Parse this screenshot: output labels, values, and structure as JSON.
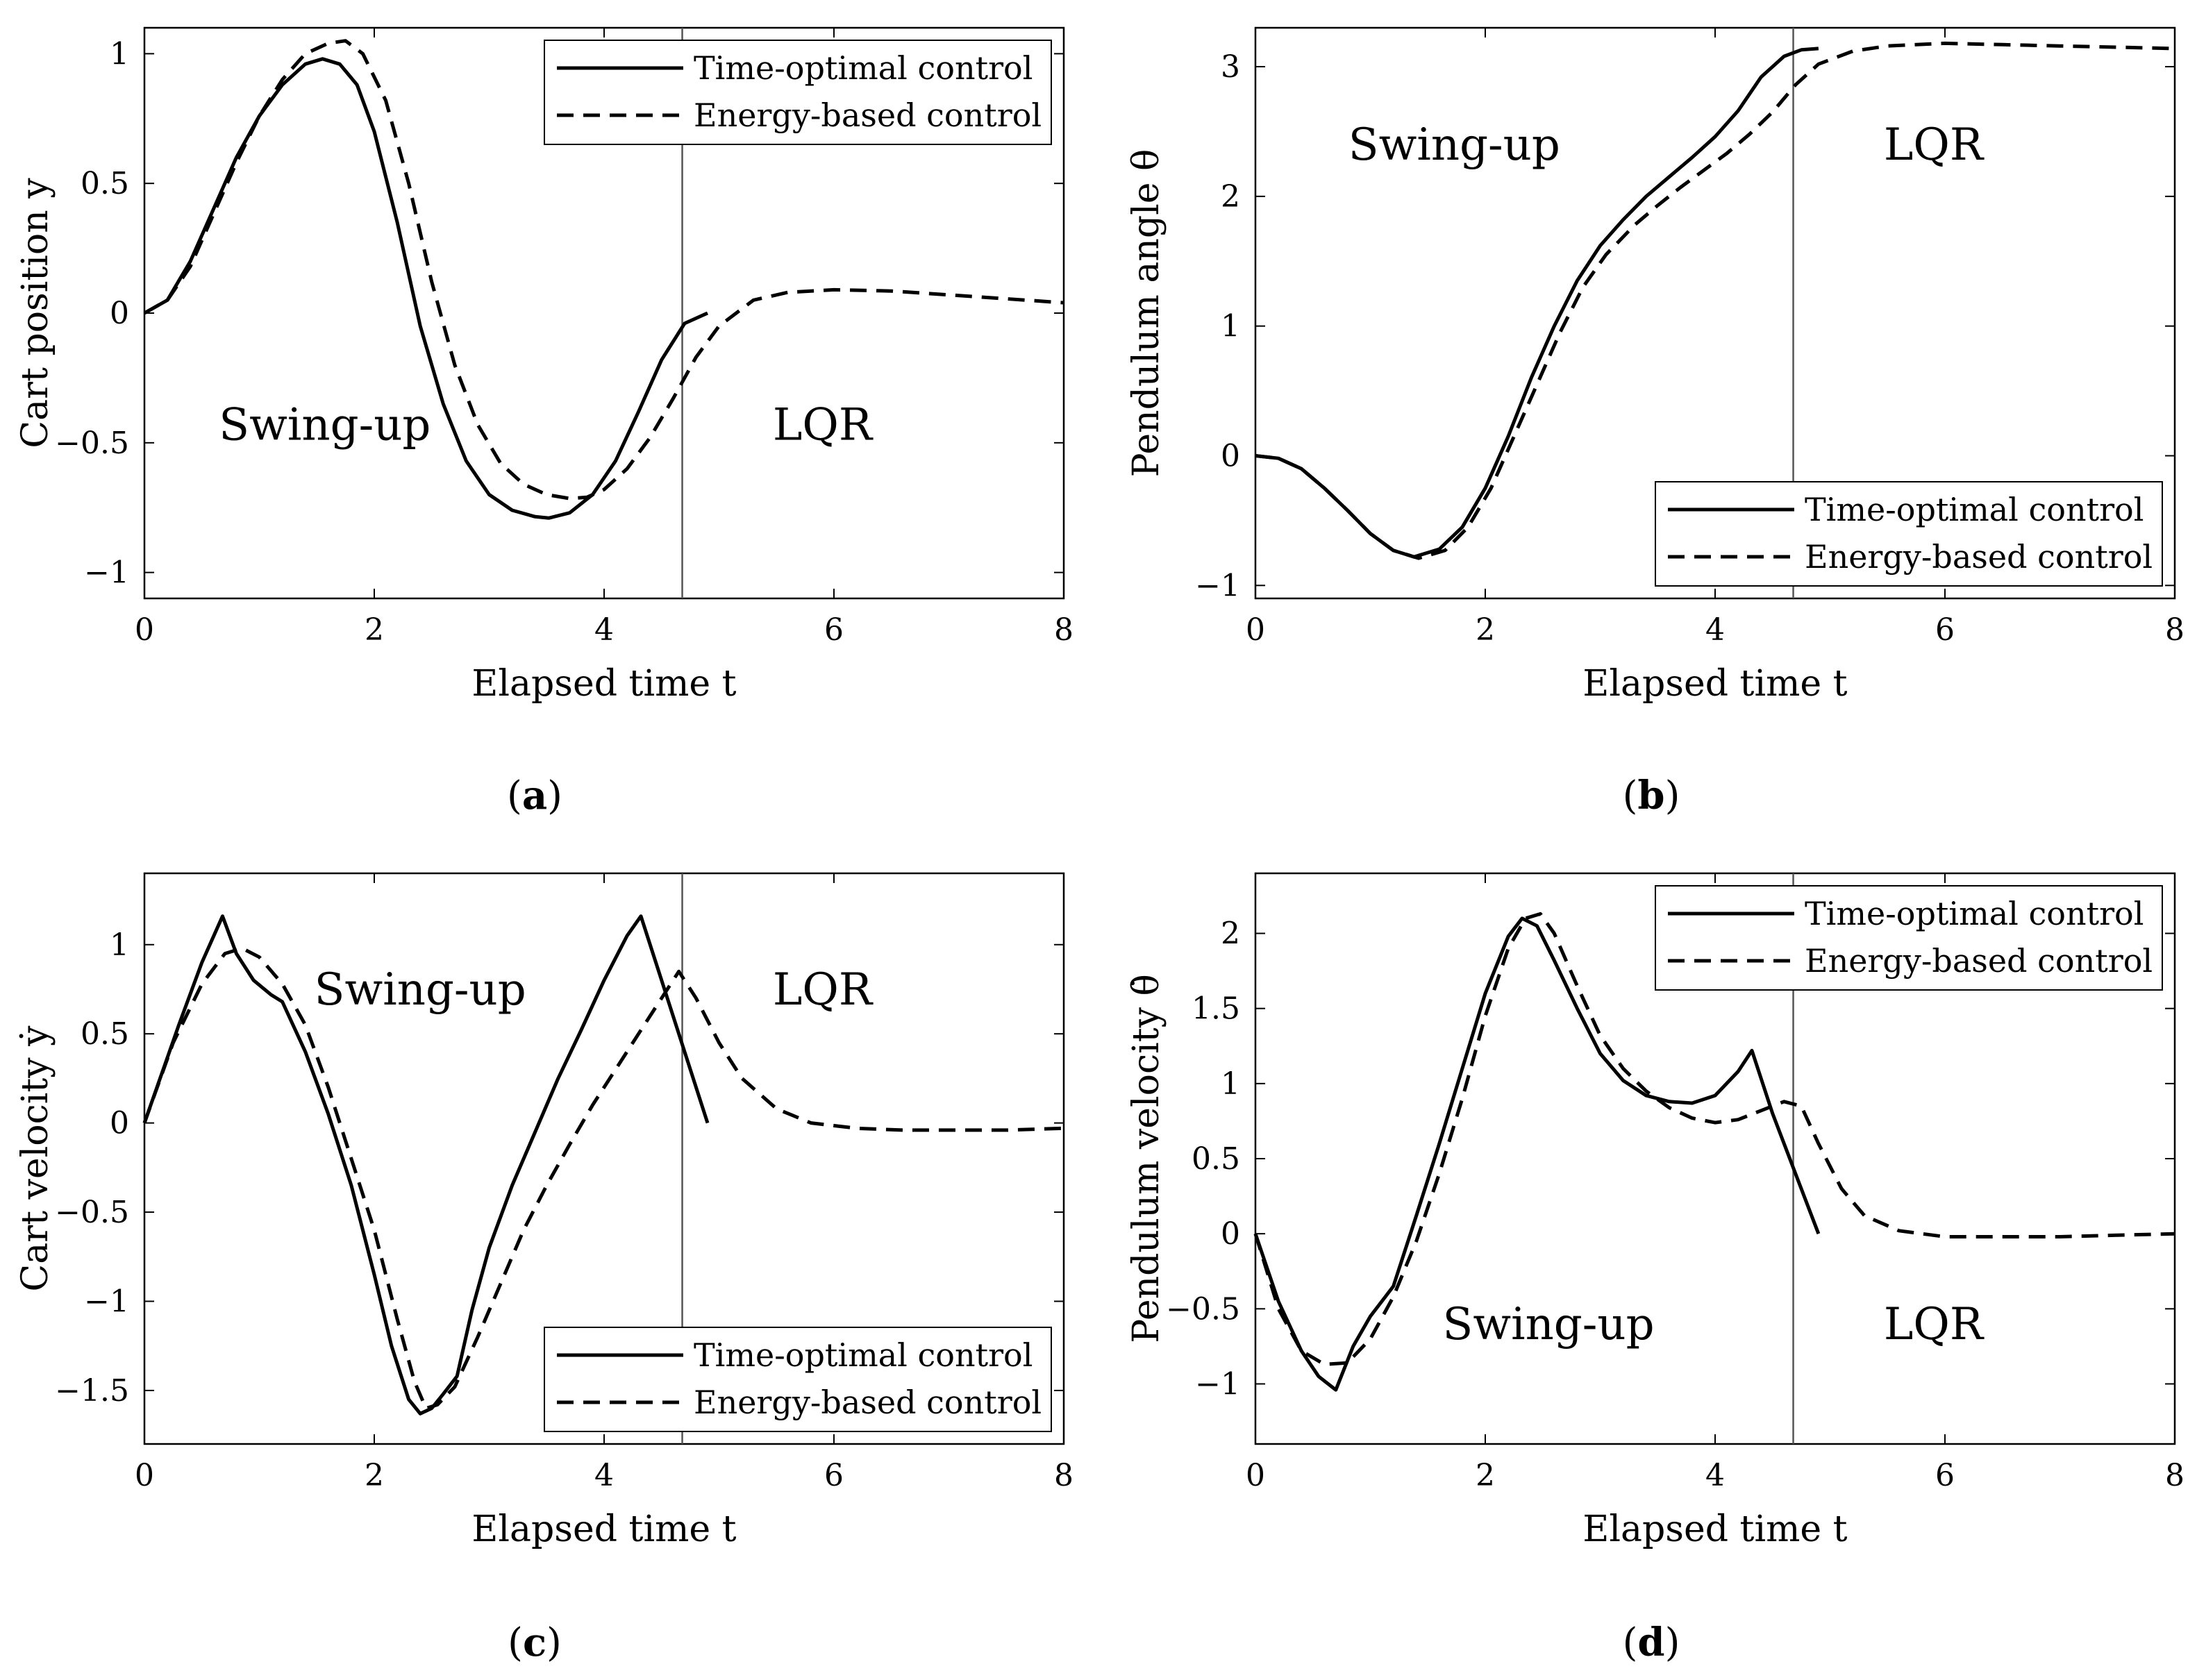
{
  "figure": {
    "legend_labels": {
      "time_optimal": "Time-optimal control",
      "energy_based": "Energy-based control"
    },
    "colors": {
      "line": "#000000",
      "switch_line": "#555555",
      "axes": "#000000"
    }
  },
  "chart_data": [
    {
      "id": "a",
      "type": "line",
      "caption_letter": "a",
      "xlabel": "Elapsed time t",
      "ylabel": "Cart position y",
      "xlim": [
        0,
        8
      ],
      "ylim": [
        -1.1,
        1.1
      ],
      "xticks": [
        0,
        2,
        4,
        6,
        8
      ],
      "yticks": [
        -1,
        -0.5,
        0,
        0.5,
        1
      ],
      "switch_time": 4.68,
      "legend_position": "top-right",
      "regions": [
        {
          "label": "Swing-up",
          "x": 1.57,
          "y": -0.43
        },
        {
          "label": "LQR",
          "x": 5.9,
          "y": -0.43
        }
      ],
      "series": [
        {
          "name": "Time-optimal control",
          "style": "solid",
          "x": [
            0,
            0.2,
            0.4,
            0.6,
            0.8,
            1.0,
            1.2,
            1.4,
            1.55,
            1.7,
            1.85,
            2.0,
            2.2,
            2.4,
            2.6,
            2.8,
            3.0,
            3.2,
            3.4,
            3.52,
            3.7,
            3.9,
            4.1,
            4.3,
            4.5,
            4.7,
            4.9
          ],
          "y": [
            0,
            0.05,
            0.2,
            0.4,
            0.6,
            0.76,
            0.88,
            0.96,
            0.98,
            0.96,
            0.88,
            0.7,
            0.35,
            -0.05,
            -0.35,
            -0.57,
            -0.7,
            -0.76,
            -0.785,
            -0.79,
            -0.77,
            -0.7,
            -0.57,
            -0.38,
            -0.18,
            -0.04,
            0
          ]
        },
        {
          "name": "Energy-based control",
          "style": "dashed",
          "x": [
            0,
            0.2,
            0.4,
            0.6,
            0.8,
            1.0,
            1.2,
            1.4,
            1.6,
            1.75,
            1.9,
            2.1,
            2.3,
            2.5,
            2.7,
            2.9,
            3.1,
            3.3,
            3.5,
            3.7,
            3.85,
            4.0,
            4.2,
            4.4,
            4.6,
            4.8,
            5.0,
            5.3,
            5.6,
            6.0,
            6.5,
            7.0,
            7.5,
            8.0
          ],
          "y": [
            0,
            0.05,
            0.18,
            0.38,
            0.58,
            0.76,
            0.9,
            1.0,
            1.04,
            1.05,
            1.0,
            0.82,
            0.5,
            0.12,
            -0.2,
            -0.43,
            -0.58,
            -0.66,
            -0.7,
            -0.715,
            -0.71,
            -0.68,
            -0.6,
            -0.48,
            -0.33,
            -0.17,
            -0.05,
            0.05,
            0.08,
            0.09,
            0.085,
            0.07,
            0.055,
            0.04
          ]
        }
      ]
    },
    {
      "id": "b",
      "type": "line",
      "caption_letter": "b",
      "xlabel": "Elapsed time t",
      "ylabel": "Pendulum angle θ",
      "xlim": [
        0,
        8
      ],
      "ylim": [
        -1.1,
        3.3
      ],
      "xticks": [
        0,
        2,
        4,
        6,
        8
      ],
      "yticks": [
        -1,
        0,
        1,
        2,
        3
      ],
      "switch_time": 4.68,
      "legend_position": "bottom-right",
      "regions": [
        {
          "label": "Swing-up",
          "x": 1.73,
          "y": 2.4
        },
        {
          "label": "LQR",
          "x": 5.9,
          "y": 2.4
        }
      ],
      "series": [
        {
          "name": "Time-optimal control",
          "style": "solid",
          "x": [
            0,
            0.2,
            0.4,
            0.6,
            0.8,
            1.0,
            1.2,
            1.38,
            1.6,
            1.8,
            2.0,
            2.2,
            2.4,
            2.6,
            2.8,
            3.0,
            3.2,
            3.4,
            3.6,
            3.8,
            4.0,
            4.2,
            4.4,
            4.6,
            4.75,
            4.9
          ],
          "y": [
            0,
            -0.02,
            -0.1,
            -0.25,
            -0.42,
            -0.6,
            -0.73,
            -0.78,
            -0.72,
            -0.55,
            -0.25,
            0.15,
            0.6,
            1.0,
            1.35,
            1.62,
            1.82,
            2.0,
            2.15,
            2.3,
            2.46,
            2.66,
            2.92,
            3.08,
            3.13,
            3.14
          ]
        },
        {
          "name": "Energy-based control",
          "style": "dashed",
          "x": [
            0,
            0.2,
            0.4,
            0.6,
            0.8,
            1.0,
            1.2,
            1.42,
            1.65,
            1.85,
            2.05,
            2.25,
            2.45,
            2.65,
            2.85,
            3.05,
            3.3,
            3.5,
            3.7,
            3.9,
            4.1,
            4.3,
            4.5,
            4.7,
            4.9,
            5.2,
            5.5,
            6.0,
            6.5,
            7.0,
            7.5,
            8.0
          ],
          "y": [
            0,
            -0.02,
            -0.1,
            -0.25,
            -0.42,
            -0.6,
            -0.73,
            -0.79,
            -0.73,
            -0.55,
            -0.25,
            0.15,
            0.55,
            0.95,
            1.3,
            1.55,
            1.78,
            1.93,
            2.07,
            2.2,
            2.33,
            2.48,
            2.65,
            2.86,
            3.02,
            3.12,
            3.16,
            3.18,
            3.17,
            3.16,
            3.15,
            3.14
          ]
        }
      ]
    },
    {
      "id": "c",
      "type": "line",
      "caption_letter": "c",
      "xlabel": "Elapsed time t",
      "ylabel": "Cart velocity ẏ",
      "xlim": [
        0,
        8
      ],
      "ylim": [
        -1.8,
        1.4
      ],
      "xticks": [
        0,
        2,
        4,
        6,
        8
      ],
      "yticks": [
        -1.5,
        -1,
        -0.5,
        0,
        0.5,
        1
      ],
      "switch_time": 4.68,
      "legend_position": "bottom-right",
      "regions": [
        {
          "label": "Swing-up",
          "x": 2.4,
          "y": 0.75
        },
        {
          "label": "LQR",
          "x": 5.9,
          "y": 0.75
        }
      ],
      "series": [
        {
          "name": "Time-optimal control",
          "style": "solid",
          "x": [
            0,
            0.3,
            0.5,
            0.68,
            0.8,
            0.95,
            1.1,
            1.2,
            1.4,
            1.6,
            1.8,
            2.0,
            2.15,
            2.3,
            2.4,
            2.5,
            2.6,
            2.72,
            2.85,
            3.0,
            3.2,
            3.4,
            3.6,
            3.8,
            4.0,
            4.2,
            4.32,
            4.5,
            4.7,
            4.9
          ],
          "y": [
            0,
            0.55,
            0.9,
            1.16,
            0.95,
            0.8,
            0.72,
            0.68,
            0.4,
            0.05,
            -0.35,
            -0.85,
            -1.25,
            -1.55,
            -1.63,
            -1.6,
            -1.52,
            -1.42,
            -1.05,
            -0.7,
            -0.35,
            -0.05,
            0.25,
            0.52,
            0.8,
            1.05,
            1.16,
            0.8,
            0.4,
            0
          ]
        },
        {
          "name": "Energy-based control",
          "style": "dashed",
          "x": [
            0,
            0.25,
            0.5,
            0.7,
            0.85,
            1.0,
            1.2,
            1.4,
            1.6,
            1.8,
            2.0,
            2.2,
            2.35,
            2.45,
            2.55,
            2.7,
            2.9,
            3.1,
            3.3,
            3.5,
            3.7,
            3.9,
            4.1,
            4.3,
            4.5,
            4.65,
            4.8,
            5.0,
            5.2,
            5.5,
            5.8,
            6.2,
            6.6,
            7.0,
            7.5,
            8.0
          ],
          "y": [
            0,
            0.45,
            0.78,
            0.95,
            0.98,
            0.93,
            0.78,
            0.55,
            0.2,
            -0.2,
            -0.6,
            -1.1,
            -1.45,
            -1.6,
            -1.58,
            -1.48,
            -1.2,
            -0.9,
            -0.6,
            -0.35,
            -0.12,
            0.1,
            0.3,
            0.5,
            0.7,
            0.85,
            0.7,
            0.45,
            0.25,
            0.08,
            0.0,
            -0.03,
            -0.04,
            -0.04,
            -0.04,
            -0.03
          ]
        }
      ]
    },
    {
      "id": "d",
      "type": "line",
      "caption_letter": "d",
      "xlabel": "Elapsed time t",
      "ylabel": "Pendulum velocity θ̇",
      "xlim": [
        0,
        8
      ],
      "ylim": [
        -1.4,
        2.4
      ],
      "xticks": [
        0,
        2,
        4,
        6,
        8
      ],
      "yticks": [
        -1,
        -0.5,
        0,
        0.5,
        1,
        1.5,
        2
      ],
      "switch_time": 4.68,
      "legend_position": "top-right",
      "regions": [
        {
          "label": "Swing-up",
          "x": 2.55,
          "y": -0.6
        },
        {
          "label": "LQR",
          "x": 5.9,
          "y": -0.6
        }
      ],
      "series": [
        {
          "name": "Time-optimal control",
          "style": "solid",
          "x": [
            0,
            0.2,
            0.4,
            0.55,
            0.7,
            0.85,
            1.0,
            1.2,
            1.4,
            1.6,
            1.8,
            2.0,
            2.2,
            2.32,
            2.45,
            2.6,
            2.8,
            3.0,
            3.2,
            3.4,
            3.6,
            3.8,
            4.0,
            4.2,
            4.32,
            4.5,
            4.7,
            4.9
          ],
          "y": [
            0,
            -0.45,
            -0.78,
            -0.95,
            -1.04,
            -0.75,
            -0.55,
            -0.35,
            0.12,
            0.6,
            1.1,
            1.6,
            1.98,
            2.1,
            2.05,
            1.82,
            1.5,
            1.2,
            1.02,
            0.92,
            0.88,
            0.87,
            0.92,
            1.08,
            1.22,
            0.8,
            0.4,
            0
          ]
        },
        {
          "name": "Energy-based control",
          "style": "dashed",
          "x": [
            0,
            0.2,
            0.4,
            0.6,
            0.8,
            1.0,
            1.2,
            1.4,
            1.6,
            1.8,
            2.0,
            2.2,
            2.35,
            2.48,
            2.6,
            2.8,
            3.0,
            3.2,
            3.4,
            3.6,
            3.8,
            4.0,
            4.2,
            4.4,
            4.6,
            4.75,
            4.9,
            5.1,
            5.3,
            5.6,
            6.0,
            6.5,
            7.0,
            7.5,
            8.0
          ],
          "y": [
            0,
            -0.5,
            -0.78,
            -0.87,
            -0.86,
            -0.7,
            -0.42,
            -0.05,
            0.4,
            0.9,
            1.45,
            1.9,
            2.1,
            2.13,
            2.0,
            1.65,
            1.32,
            1.1,
            0.95,
            0.84,
            0.77,
            0.74,
            0.76,
            0.82,
            0.88,
            0.85,
            0.6,
            0.3,
            0.12,
            0.02,
            -0.02,
            -0.02,
            -0.02,
            -0.01,
            0
          ]
        }
      ]
    }
  ]
}
